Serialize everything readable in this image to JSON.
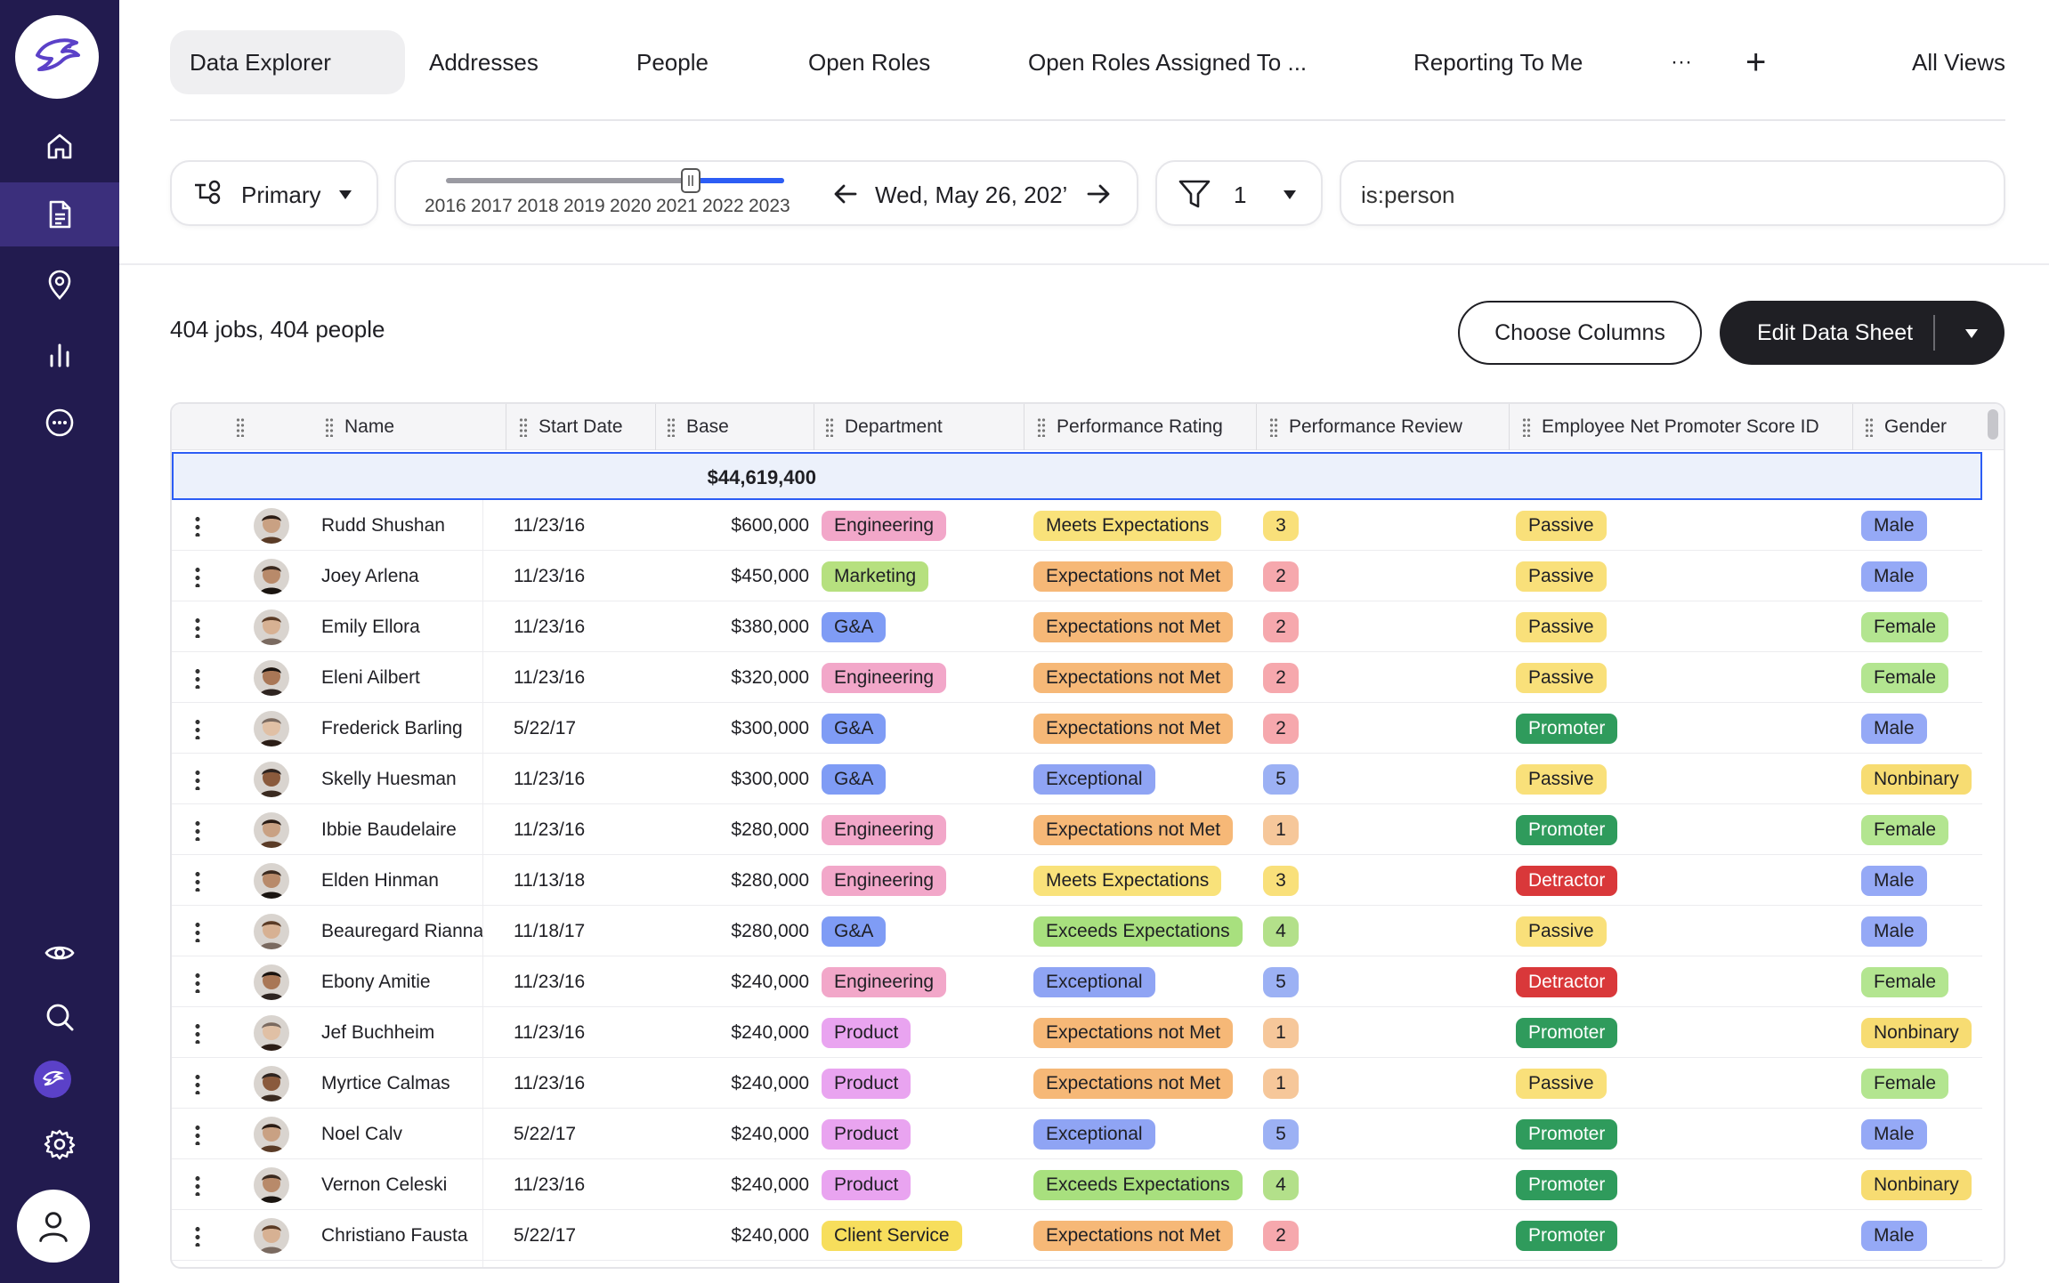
{
  "colors": {
    "sidebar_bg": "#221b4f",
    "sidebar_active": "#3b2f7c",
    "accent_blue": "#2c5df5",
    "dept": {
      "Engineering": "#f2a7c9",
      "Marketing": "#b6e07f",
      "G&A": "#7f9cf5",
      "Product": "#e9a4f0",
      "Client Service": "#f7de5c"
    },
    "rating": {
      "Meets Expectations": "#f9e27a",
      "Expectations not Met": "#f6b877",
      "Exceptional": "#8fa4f4",
      "Exceeds Expectations": "#a8e07e"
    },
    "review": {
      "1": "#f6c79a",
      "2": "#f6a8ad",
      "3": "#f9e07a",
      "4": "#b3e08a",
      "5": "#9cb1f4"
    },
    "nps": {
      "Passive": {
        "bg": "#f9e07a",
        "fg": "#1f1f24"
      },
      "Promoter": {
        "bg": "#2f9b5c",
        "fg": "#ffffff"
      },
      "Detractor": {
        "bg": "#d9383a",
        "fg": "#ffffff"
      }
    },
    "gender": {
      "Male": "#95a9f6",
      "Female": "#b3e590",
      "Nonbinary": "#f7dc72"
    }
  },
  "sidebar": {
    "logo_icon": "eagle-logo-icon",
    "nav": [
      {
        "icon": "home-icon",
        "active": false
      },
      {
        "icon": "document-icon",
        "active": true
      },
      {
        "icon": "location-pin-icon",
        "active": false
      },
      {
        "icon": "bar-chart-icon",
        "active": false
      },
      {
        "icon": "more-circle-icon",
        "active": false
      }
    ],
    "bottom": [
      {
        "icon": "eye-icon"
      },
      {
        "icon": "search-icon"
      },
      {
        "icon": "brand-mini-icon"
      },
      {
        "icon": "gear-icon"
      },
      {
        "icon": "user-icon"
      }
    ]
  },
  "tabs": {
    "items": [
      "Data Explorer",
      "Addresses",
      "People",
      "Open Roles",
      "Open Roles Assigned To ...",
      "Reporting To Me"
    ],
    "active": 0,
    "more": "···",
    "add": "+",
    "all_views": "All Views"
  },
  "toolbar": {
    "primary_label": "Primary",
    "years": [
      "2016",
      "2017",
      "2018",
      "2019",
      "2020",
      "2021",
      "2022",
      "2023"
    ],
    "date_label": "Wed, May 26, 202’",
    "filter_count": "1",
    "search_value": "is:person"
  },
  "summary": {
    "count_text": "404 jobs, 404 people",
    "choose_columns": "Choose Columns",
    "edit_data_sheet": "Edit Data Sheet"
  },
  "table": {
    "columns": [
      "Name",
      "Start Date",
      "Base",
      "Department",
      "Performance Rating",
      "Performance Review",
      "Employee Net Promoter Score ID",
      "Gender"
    ],
    "total_base": "$44,619,400",
    "rows": [
      {
        "name": "Rudd Shushan",
        "start": "11/23/16",
        "base": "$600,000",
        "dept": "Engineering",
        "rating": "Meets Expectations",
        "review": "3",
        "nps": "Passive",
        "gender": "Male"
      },
      {
        "name": "Joey Arlena",
        "start": "11/23/16",
        "base": "$450,000",
        "dept": "Marketing",
        "rating": "Expectations not Met",
        "review": "2",
        "nps": "Passive",
        "gender": "Male"
      },
      {
        "name": "Emily Ellora",
        "start": "11/23/16",
        "base": "$380,000",
        "dept": "G&A",
        "rating": "Expectations not Met",
        "review": "2",
        "nps": "Passive",
        "gender": "Female"
      },
      {
        "name": "Eleni Ailbert",
        "start": "11/23/16",
        "base": "$320,000",
        "dept": "Engineering",
        "rating": "Expectations not Met",
        "review": "2",
        "nps": "Passive",
        "gender": "Female"
      },
      {
        "name": "Frederick Barling",
        "start": "5/22/17",
        "base": "$300,000",
        "dept": "G&A",
        "rating": "Expectations not Met",
        "review": "2",
        "nps": "Promoter",
        "gender": "Male"
      },
      {
        "name": "Skelly Huesman",
        "start": "11/23/16",
        "base": "$300,000",
        "dept": "G&A",
        "rating": "Exceptional",
        "review": "5",
        "nps": "Passive",
        "gender": "Nonbinary"
      },
      {
        "name": "Ibbie Baudelaire",
        "start": "11/23/16",
        "base": "$280,000",
        "dept": "Engineering",
        "rating": "Expectations not Met",
        "review": "1",
        "nps": "Promoter",
        "gender": "Female"
      },
      {
        "name": "Elden Hinman",
        "start": "11/13/18",
        "base": "$280,000",
        "dept": "Engineering",
        "rating": "Meets Expectations",
        "review": "3",
        "nps": "Detractor",
        "gender": "Male"
      },
      {
        "name": "Beauregard Rianna",
        "start": "11/18/17",
        "base": "$280,000",
        "dept": "G&A",
        "rating": "Exceeds Expectations",
        "review": "4",
        "nps": "Passive",
        "gender": "Male"
      },
      {
        "name": "Ebony Amitie",
        "start": "11/23/16",
        "base": "$240,000",
        "dept": "Engineering",
        "rating": "Exceptional",
        "review": "5",
        "nps": "Detractor",
        "gender": "Female"
      },
      {
        "name": "Jef Buchheim",
        "start": "11/23/16",
        "base": "$240,000",
        "dept": "Product",
        "rating": "Expectations not Met",
        "review": "1",
        "nps": "Promoter",
        "gender": "Nonbinary"
      },
      {
        "name": "Myrtice Calmas",
        "start": "11/23/16",
        "base": "$240,000",
        "dept": "Product",
        "rating": "Expectations not Met",
        "review": "1",
        "nps": "Passive",
        "gender": "Female"
      },
      {
        "name": "Noel Calv",
        "start": "5/22/17",
        "base": "$240,000",
        "dept": "Product",
        "rating": "Exceptional",
        "review": "5",
        "nps": "Promoter",
        "gender": "Male"
      },
      {
        "name": "Vernon Celeski",
        "start": "11/23/16",
        "base": "$240,000",
        "dept": "Product",
        "rating": "Exceeds Expectations",
        "review": "4",
        "nps": "Promoter",
        "gender": "Nonbinary"
      },
      {
        "name": "Christiano Fausta",
        "start": "5/22/17",
        "base": "$240,000",
        "dept": "Client Service",
        "rating": "Expectations not Met",
        "review": "2",
        "nps": "Promoter",
        "gender": "Male"
      }
    ]
  }
}
